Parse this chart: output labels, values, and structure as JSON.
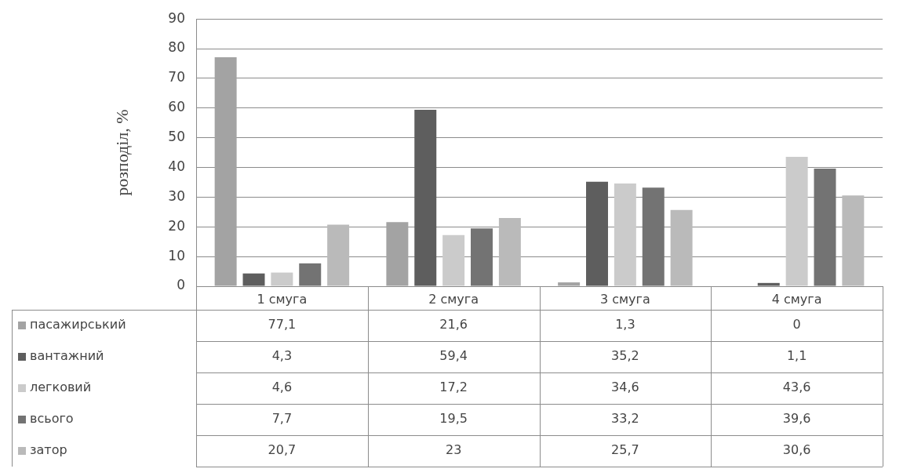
{
  "chart_data": {
    "type": "bar",
    "ylabel": "розподіл, %",
    "categories": [
      "1 смуга",
      "2 смуга",
      "3 смуга",
      "4 смуга"
    ],
    "ylim": [
      0,
      90
    ],
    "yticks": [
      0,
      10,
      20,
      30,
      40,
      50,
      60,
      70,
      80,
      90
    ],
    "grid": "y",
    "legend": "bottom left",
    "series": [
      {
        "name": "пасажирський",
        "color": "#a3a3a3",
        "values": [
          77.1,
          21.6,
          1.3,
          0
        ],
        "value_labels": [
          "77,1",
          "21,6",
          "1,3",
          "0"
        ]
      },
      {
        "name": "вантажний",
        "color": "#5e5e5e",
        "values": [
          4.3,
          59.4,
          35.2,
          1.1
        ],
        "value_labels": [
          "4,3",
          "59,4",
          "35,2",
          "1,1"
        ]
      },
      {
        "name": "легковий",
        "color": "#cbcbcb",
        "values": [
          4.6,
          17.2,
          34.6,
          43.6
        ],
        "value_labels": [
          "4,6",
          "17,2",
          "34,6",
          "43,6"
        ]
      },
      {
        "name": "всього",
        "color": "#737373",
        "values": [
          7.7,
          19.5,
          33.2,
          39.6
        ],
        "value_labels": [
          "7,7",
          "19,5",
          "33,2",
          "39,6"
        ]
      },
      {
        "name": "затор",
        "color": "#bababa",
        "values": [
          20.7,
          23,
          25.7,
          30.6
        ],
        "value_labels": [
          "20,7",
          "23",
          "25,7",
          "30,6"
        ]
      }
    ]
  }
}
